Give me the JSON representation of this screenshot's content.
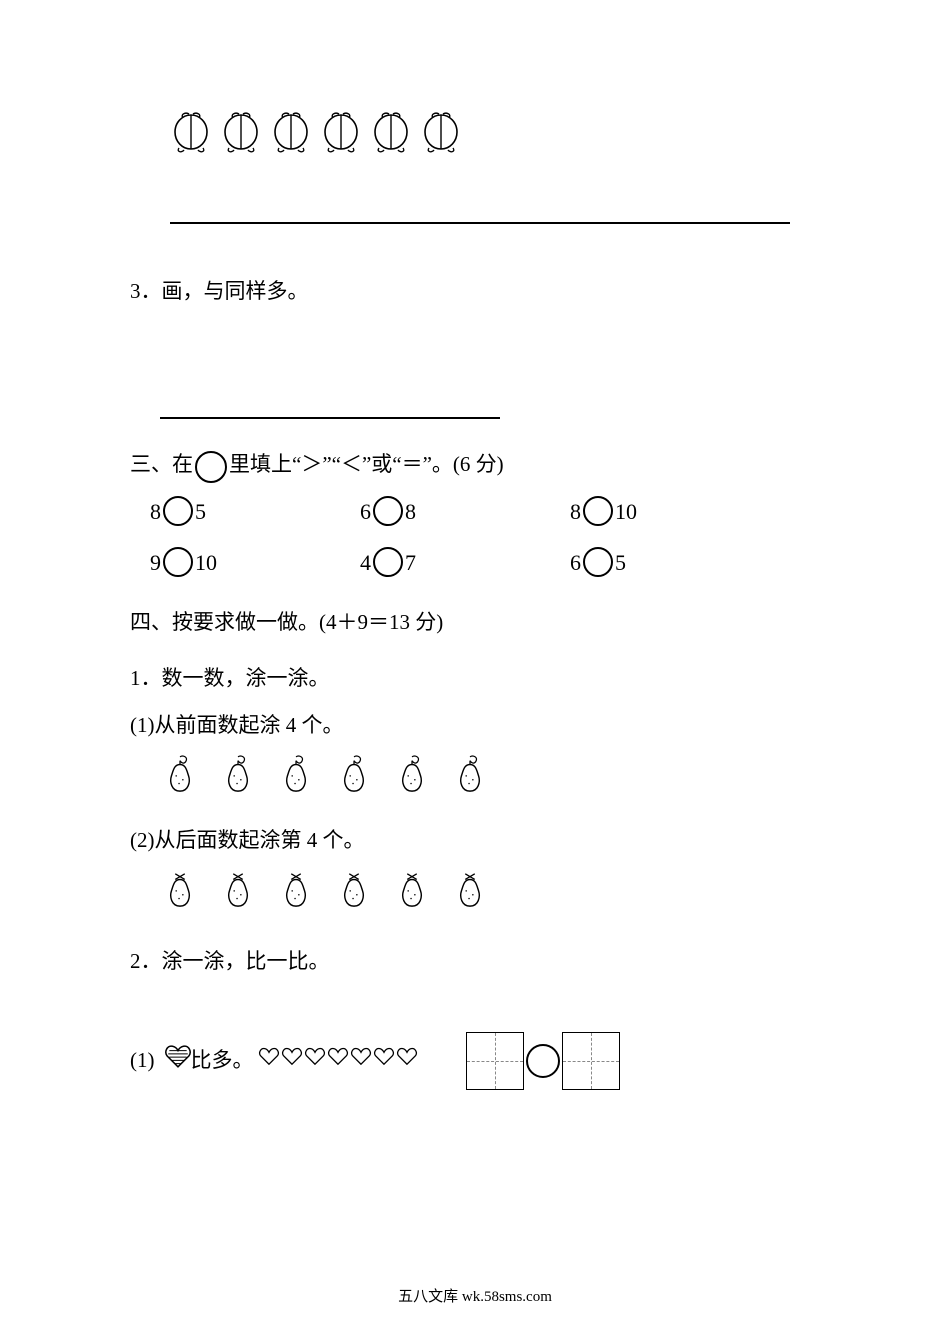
{
  "peaches": {
    "count": 6
  },
  "q3": {
    "label": "3．画，与同样多。"
  },
  "section3": {
    "title_prefix": "三、在",
    "title_suffix": "里填上“＞”“＜”或“＝”。(6 分)",
    "rows": [
      [
        {
          "a": "8",
          "b": "5"
        },
        {
          "a": "6",
          "b": "8"
        },
        {
          "a": "8",
          "b": "10"
        }
      ],
      [
        {
          "a": "9",
          "b": "10"
        },
        {
          "a": "4",
          "b": "7"
        },
        {
          "a": "6",
          "b": "5"
        }
      ]
    ]
  },
  "section4": {
    "title": "四、按要求做一做。(4＋9＝13 分)",
    "q1": {
      "label": "1．数一数，涂一涂。",
      "sub1": {
        "label": "(1)从前面数起涂 4 个。",
        "pear_count": 6
      },
      "sub2": {
        "label": "(2)从后面数起涂第 4 个。",
        "pear_count": 6
      }
    },
    "q2": {
      "label": "2．涂一涂，比一比。",
      "sub1": {
        "idx": "(1)",
        "text_mid": "比多。",
        "outline_heart_count": 7
      }
    }
  },
  "footer": "五八文库 wk.58sms.com"
}
